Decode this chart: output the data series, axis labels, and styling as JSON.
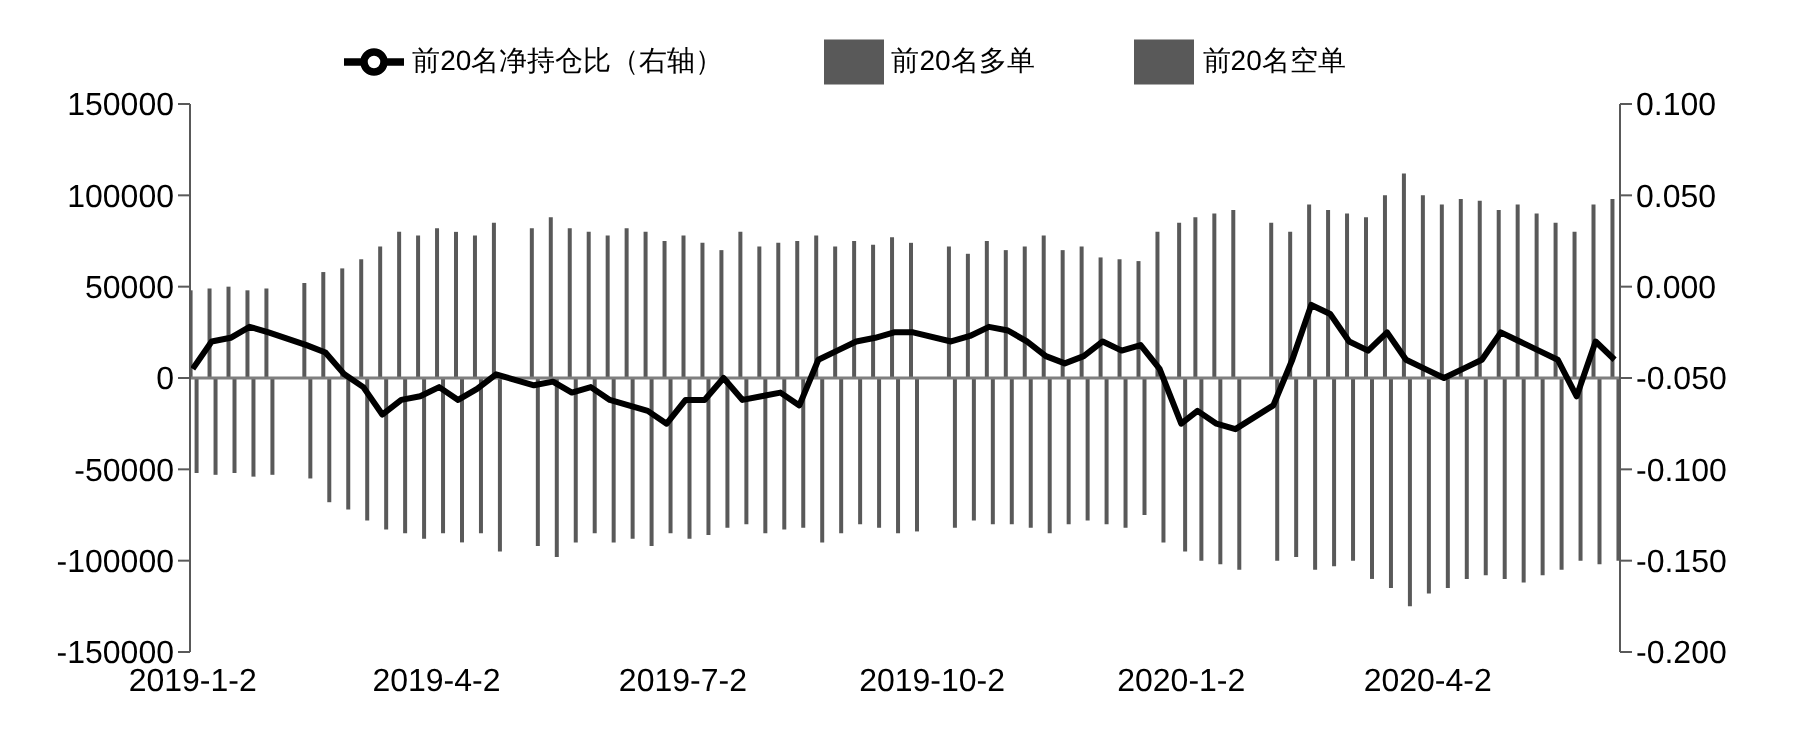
{
  "chart_data": {
    "type": "bar",
    "x": [
      "2019-01-02",
      "2019-01-09",
      "2019-01-16",
      "2019-01-23",
      "2019-01-30",
      "2019-02-13",
      "2019-02-20",
      "2019-02-27",
      "2019-03-06",
      "2019-03-13",
      "2019-03-20",
      "2019-03-27",
      "2019-04-03",
      "2019-04-10",
      "2019-04-17",
      "2019-04-24",
      "2019-05-08",
      "2019-05-15",
      "2019-05-22",
      "2019-05-29",
      "2019-06-05",
      "2019-06-12",
      "2019-06-19",
      "2019-06-26",
      "2019-07-03",
      "2019-07-10",
      "2019-07-17",
      "2019-07-24",
      "2019-07-31",
      "2019-08-07",
      "2019-08-14",
      "2019-08-21",
      "2019-08-28",
      "2019-09-04",
      "2019-09-11",
      "2019-09-18",
      "2019-09-25",
      "2019-10-09",
      "2019-10-16",
      "2019-10-23",
      "2019-10-30",
      "2019-11-06",
      "2019-11-13",
      "2019-11-20",
      "2019-11-27",
      "2019-12-04",
      "2019-12-11",
      "2019-12-18",
      "2019-12-25",
      "2020-01-02",
      "2020-01-08",
      "2020-01-15",
      "2020-01-22",
      "2020-02-05",
      "2020-02-12",
      "2020-02-19",
      "2020-02-26",
      "2020-03-04",
      "2020-03-11",
      "2020-03-18",
      "2020-03-25",
      "2020-04-01",
      "2020-04-08",
      "2020-04-15",
      "2020-04-22",
      "2020-04-29",
      "2020-05-06",
      "2020-05-13",
      "2020-05-20",
      "2020-05-27",
      "2020-06-03",
      "2020-06-10"
    ],
    "series": [
      {
        "name": "前20名多单",
        "color": "#595959",
        "values": [
          48000,
          49000,
          50000,
          48000,
          49000,
          52000,
          58000,
          60000,
          65000,
          72000,
          80000,
          78000,
          82000,
          80000,
          78000,
          85000,
          82000,
          88000,
          82000,
          80000,
          78000,
          82000,
          80000,
          75000,
          78000,
          74000,
          70000,
          80000,
          72000,
          74000,
          75000,
          78000,
          72000,
          75000,
          73000,
          77000,
          74000,
          72000,
          68000,
          75000,
          70000,
          72000,
          78000,
          70000,
          72000,
          66000,
          65000,
          64000,
          80000,
          85000,
          88000,
          90000,
          92000,
          85000,
          80000,
          95000,
          92000,
          90000,
          88000,
          100000,
          112000,
          100000,
          95000,
          98000,
          97000,
          92000,
          95000,
          90000,
          85000,
          80000,
          95000,
          98000
        ]
      },
      {
        "name": "前20名空单",
        "color": "#595959",
        "values": [
          -52000,
          -53000,
          -52000,
          -54000,
          -53000,
          -55000,
          -68000,
          -72000,
          -78000,
          -83000,
          -85000,
          -88000,
          -85000,
          -90000,
          -85000,
          -95000,
          -92000,
          -98000,
          -90000,
          -85000,
          -90000,
          -88000,
          -92000,
          -85000,
          -88000,
          -86000,
          -82000,
          -80000,
          -85000,
          -83000,
          -82000,
          -90000,
          -85000,
          -80000,
          -82000,
          -85000,
          -84000,
          -82000,
          -78000,
          -80000,
          -80000,
          -82000,
          -85000,
          -80000,
          -78000,
          -80000,
          -82000,
          -75000,
          -90000,
          -95000,
          -100000,
          -102000,
          -105000,
          -100000,
          -98000,
          -105000,
          -103000,
          -100000,
          -110000,
          -115000,
          -125000,
          -118000,
          -115000,
          -110000,
          -108000,
          -110000,
          -112000,
          -108000,
          -105000,
          -100000,
          -102000,
          -100000
        ]
      },
      {
        "name": "前20名净持仓比（右轴）",
        "type": "line",
        "axis": "y2",
        "color": "#000000",
        "values": [
          -0.045,
          -0.03,
          -0.028,
          -0.022,
          -0.025,
          -0.032,
          -0.036,
          -0.048,
          -0.055,
          -0.07,
          -0.062,
          -0.06,
          -0.055,
          -0.062,
          -0.056,
          -0.048,
          -0.054,
          -0.052,
          -0.058,
          -0.055,
          -0.062,
          -0.065,
          -0.068,
          -0.075,
          -0.062,
          -0.062,
          -0.05,
          -0.062,
          -0.06,
          -0.058,
          -0.065,
          -0.04,
          -0.035,
          -0.03,
          -0.028,
          -0.025,
          -0.025,
          -0.03,
          -0.027,
          -0.022,
          -0.024,
          -0.03,
          -0.038,
          -0.042,
          -0.038,
          -0.03,
          -0.035,
          -0.032,
          -0.045,
          -0.075,
          -0.068,
          -0.075,
          -0.078,
          -0.065,
          -0.04,
          -0.01,
          -0.015,
          -0.03,
          -0.035,
          -0.025,
          -0.04,
          -0.045,
          -0.05,
          -0.045,
          -0.04,
          -0.025,
          -0.03,
          -0.035,
          -0.04,
          -0.06,
          -0.03,
          -0.04
        ]
      }
    ],
    "xlim": [
      "2019-01-01",
      "2020-06-12"
    ],
    "xticks": [
      {
        "value": "2019-01-02",
        "label": "2019-1-2"
      },
      {
        "value": "2019-04-02",
        "label": "2019-4-2"
      },
      {
        "value": "2019-07-02",
        "label": "2019-7-2"
      },
      {
        "value": "2019-10-02",
        "label": "2019-10-2"
      },
      {
        "value": "2020-01-02",
        "label": "2020-1-2"
      },
      {
        "value": "2020-04-02",
        "label": "2020-4-2"
      }
    ],
    "ylim": [
      -150000,
      150000
    ],
    "yticks": [
      -150000,
      -100000,
      -50000,
      0,
      50000,
      100000,
      150000
    ],
    "y2lim": [
      -0.2,
      0.1
    ],
    "y2ticks": [
      {
        "value": -0.2,
        "label": "-0.200"
      },
      {
        "value": -0.15,
        "label": "-0.150"
      },
      {
        "value": -0.1,
        "label": "-0.100"
      },
      {
        "value": -0.05,
        "label": "-0.050"
      },
      {
        "value": 0,
        "label": "0.000"
      },
      {
        "value": 0.05,
        "label": "0.050"
      },
      {
        "value": 0.1,
        "label": "0.100"
      }
    ],
    "ref_lines": [
      {
        "axis": "y",
        "value": 0,
        "color": "#7f7f7f"
      }
    ],
    "grid": false,
    "legend": "top",
    "marker": "none",
    "line_style": "solid"
  }
}
